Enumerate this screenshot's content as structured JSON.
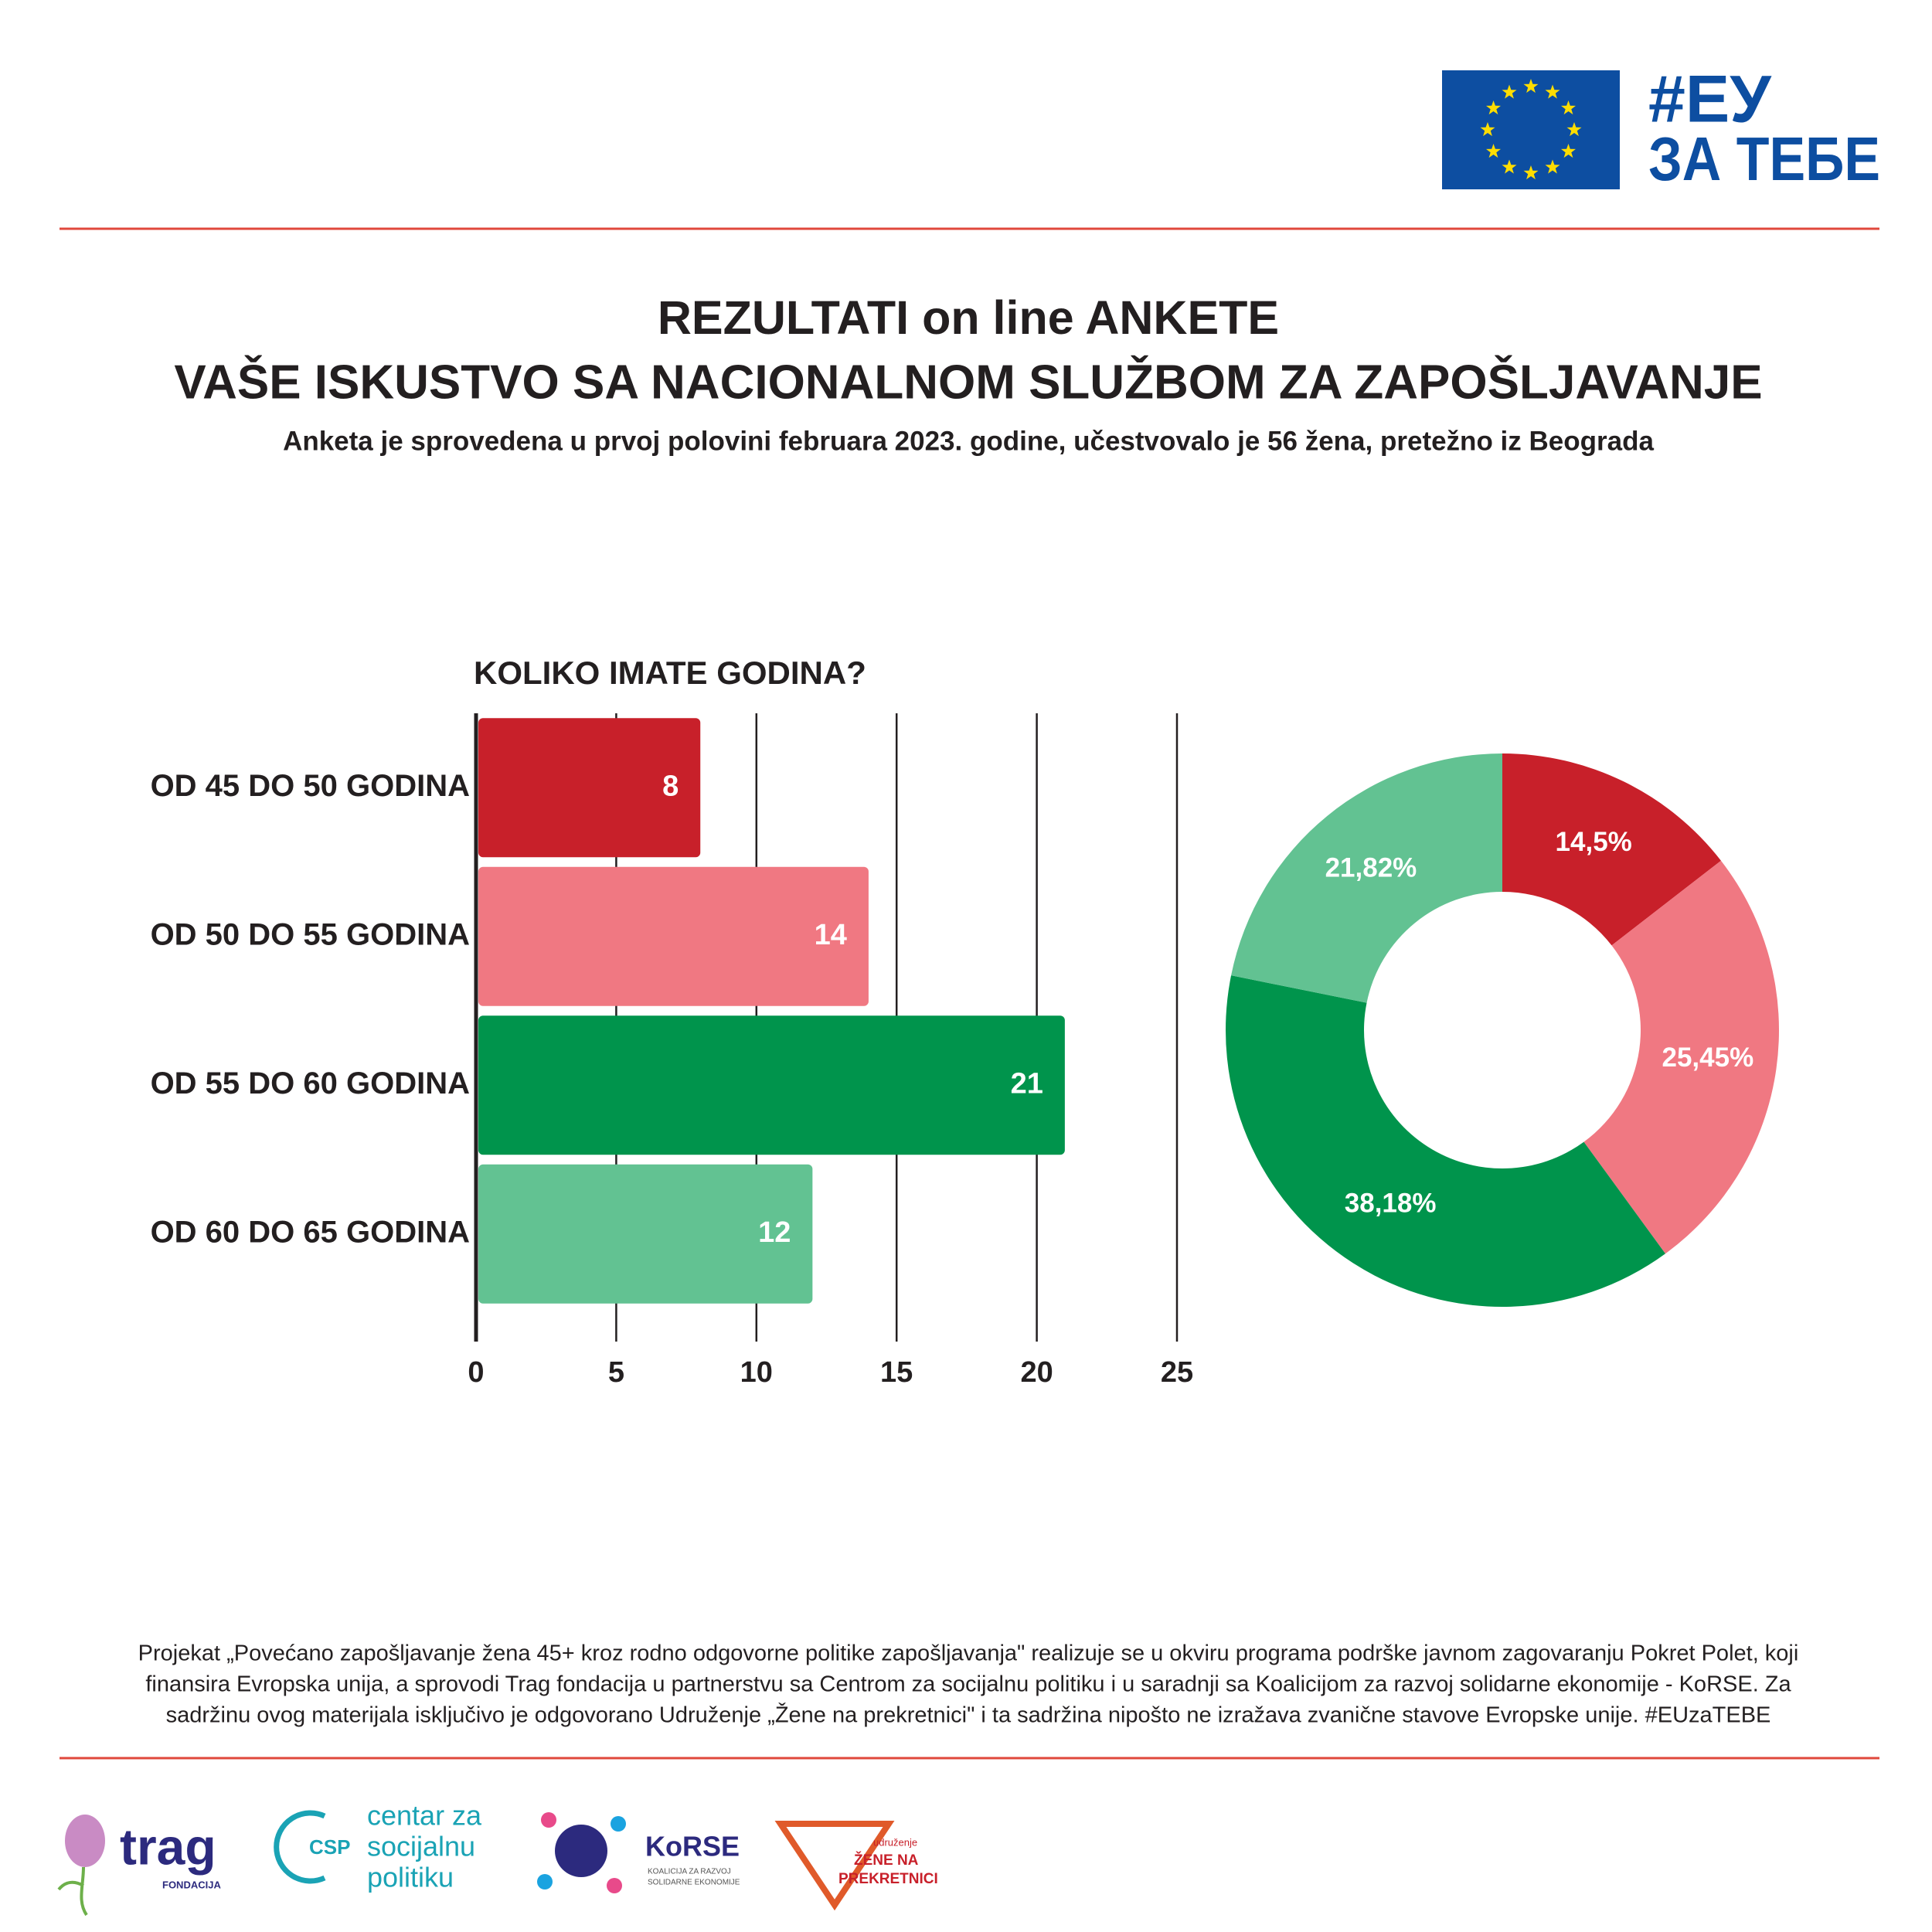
{
  "header": {
    "hashtag": "#ЕУ",
    "tagline": "ЗА ТЕБЕ"
  },
  "title": [
    "REZULTATI on line ANKETE",
    "VAŠE ISKUSTVO SA NACIONALNOM SLUŽBOM ZA ZAPOŠLJAVANJE",
    "Anketa je sprovedena u prvoj polovini februara 2023. godine, učestvovalo je 56 žena, pretežno iz Beograda"
  ],
  "chart_data": [
    {
      "type": "bar",
      "orientation": "horizontal",
      "title": "KOLIKO IMATE GODINA?",
      "categories": [
        "OD 45 DO 50 GODINA",
        "OD 50 DO 55 GODINA",
        "OD 55 DO 60 GODINA",
        "OD 60 DO 65 GODINA"
      ],
      "values": [
        8,
        14,
        21,
        12
      ],
      "colors": [
        "#c8202a",
        "#f07882",
        "#00944c",
        "#62c292"
      ],
      "xlim": [
        0,
        25
      ],
      "xticks": [
        0,
        5,
        10,
        15,
        20,
        25
      ],
      "grid": true
    },
    {
      "type": "pie",
      "donut": true,
      "values": [
        14.5,
        25.45,
        38.18,
        21.82
      ],
      "value_labels": [
        "14,5%",
        "25,45%",
        "38,18%",
        "21,82%"
      ],
      "colors": [
        "#c8202a",
        "#f07882",
        "#00944c",
        "#62c292"
      ]
    }
  ],
  "footer": {
    "text": [
      "Projekat „Povećano zapošljavanje žena 45+ kroz rodno odgovorne politike zapošljavanja\" realizuje se u okviru programa podrške javnom zagovaranju Pokret Polet, koji",
      "finansira Evropska unija, a sprovodi Trag fondacija u partnerstvu sa Centrom za socijalnu politiku i u saradnji sa Koalicijom za razvoj solidarne ekonomije - KoRSE. Za",
      "sadržinu ovog materijala isključivo je odgovorano Udruženje „Žene na prekretnici\" i ta sadržina nipošto ne izražava zvanične stavove Evropske unije. #EUzaTEBE"
    ],
    "logos": {
      "trag": "trag",
      "trag_sub": "FONDACIJA",
      "csp": "CSP",
      "csp_name": [
        "centar za",
        "socijalnu",
        "politiku"
      ],
      "korse": "KoRSE",
      "korse_sub": [
        "KOALICIJA ZA RAZVOJ",
        "SOLIDARNE EKONOMIJE"
      ],
      "zene_top": "udruženje",
      "zene": [
        "ŽENE NA",
        "PREKRETNICI"
      ]
    }
  }
}
